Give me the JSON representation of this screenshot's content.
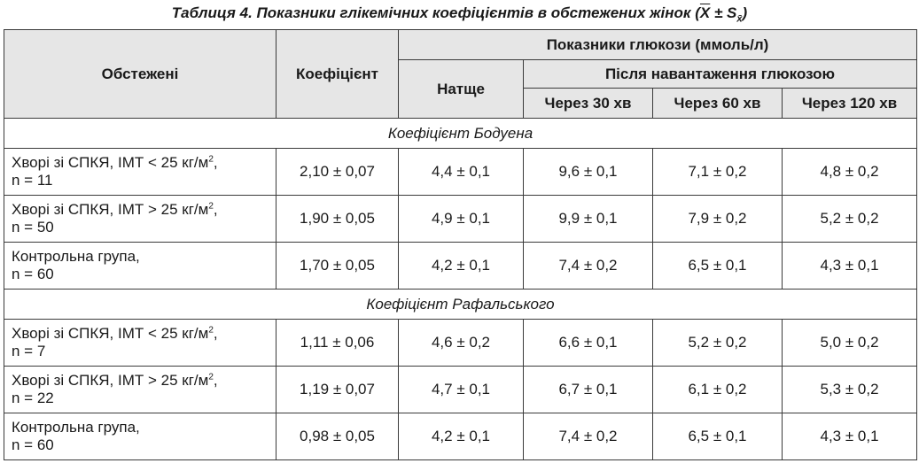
{
  "caption": {
    "prefix": "Таблиця 4.  Показники глікемічних коефіцієнтів в обстежених жінок (",
    "xbar": "X",
    "pm": " ± S",
    "sub": "x̄",
    "suffix": ")"
  },
  "header": {
    "col_examined": "Обстежені",
    "col_coefficient": "Коефіцієнт",
    "glucose_group": "Показники глюкози (ммоль/л)",
    "fasting": "Натще",
    "after_load": "Після навантаження глюкозою",
    "after_30": "Через 30 хв",
    "after_60": "Через 60 хв",
    "after_120": "Через 120 хв"
  },
  "sections": [
    {
      "title": "Коефіцієнт Бодуена",
      "rows": [
        {
          "name_line1": "Хворі зі СПКЯ, ІМТ < 25 кг/м",
          "sup": "2",
          "name_line1_end": ",",
          "name_line2": "n = 11",
          "coef": "2,10 ± 0,07",
          "fasting": "4,4 ± 0,1",
          "m30": "9,6 ± 0,1",
          "m60": "7,1 ± 0,2",
          "m120": "4,8 ± 0,2"
        },
        {
          "name_line1": "Хворі зі СПКЯ, ІМТ > 25 кг/м",
          "sup": "2",
          "name_line1_end": ",",
          "name_line2": "n = 50",
          "coef": "1,90 ± 0,05",
          "fasting": "4,9 ± 0,1",
          "m30": "9,9 ± 0,1",
          "m60": "7,9 ± 0,2",
          "m120": "5,2 ± 0,2"
        },
        {
          "name_line1": "Контрольна група,",
          "sup": "",
          "name_line1_end": "",
          "name_line2": "n = 60",
          "coef": "1,70 ± 0,05",
          "fasting": "4,2 ± 0,1",
          "m30": "7,4 ± 0,2",
          "m60": "6,5 ± 0,1",
          "m120": "4,3 ± 0,1"
        }
      ]
    },
    {
      "title": "Коефіцієнт Рафальського",
      "rows": [
        {
          "name_line1": "Хворі зі СПКЯ, ІМТ < 25 кг/м",
          "sup": "2",
          "name_line1_end": ",",
          "name_line2": "n = 7",
          "coef": "1,11 ± 0,06",
          "fasting": "4,6 ± 0,2",
          "m30": "6,6 ± 0,1",
          "m60": "5,2 ± 0,2",
          "m120": "5,0 ± 0,2"
        },
        {
          "name_line1": "Хворі зі СПКЯ, ІМТ > 25 кг/м",
          "sup": "2",
          "name_line1_end": ",",
          "name_line2": "n = 22",
          "coef": "1,19 ± 0,07",
          "fasting": "4,7 ± 0,1",
          "m30": "6,7 ± 0,1",
          "m60": "6,1 ± 0,2",
          "m120": "5,3 ± 0,2"
        },
        {
          "name_line1": "Контрольна група,",
          "sup": "",
          "name_line1_end": "",
          "name_line2": "n = 60",
          "coef": "0,98 ± 0,05",
          "fasting": "4,2 ± 0,1",
          "m30": "7,4 ± 0,2",
          "m60": "6,5 ± 0,1",
          "m120": "4,3 ± 0,1"
        }
      ]
    }
  ]
}
